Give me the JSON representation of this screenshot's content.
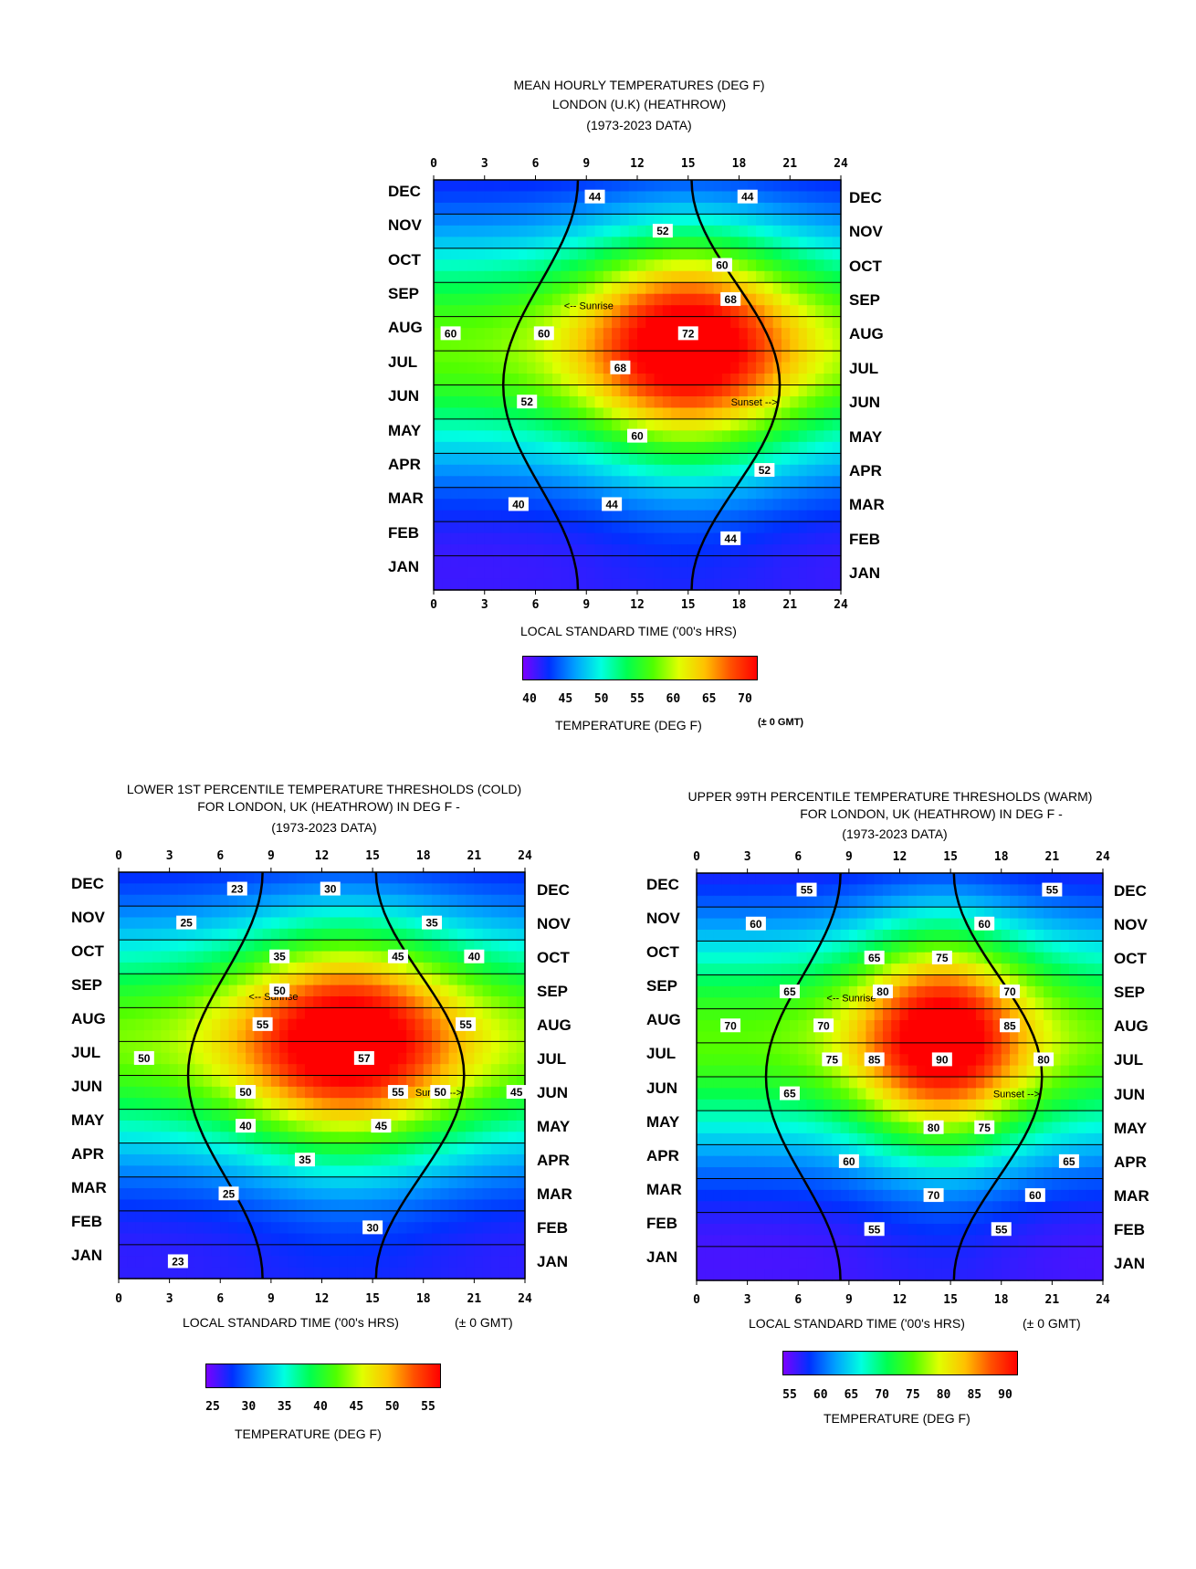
{
  "colorscale": [
    "#7a00ff",
    "#0030ff",
    "#00a0ff",
    "#00ffe0",
    "#00ff50",
    "#50ff00",
    "#e0ff00",
    "#ffc000",
    "#ff5000",
    "#ff0000"
  ],
  "charts": [
    {
      "id": "mean",
      "title_lines": [
        "MEAN HOURLY TEMPERATURES (DEG F)",
        "LONDON (U.K)  (HEATHROW)",
        "(1973-2023 DATA)"
      ],
      "xlabel": "LOCAL STANDARD TIME ('00's HRS)",
      "colorbar_label": "TEMPERATURE (DEG F)",
      "colorbar_ticks": [
        "40",
        "45",
        "50",
        "55",
        "60",
        "65",
        "70"
      ],
      "gmt_note": "(± 0 GMT)",
      "sunrise_label": "<-- Sunrise",
      "sunset_label": "Sunset -->"
    },
    {
      "id": "cold",
      "title_lines": [
        "LOWER 1ST PERCENTILE TEMPERATURE THRESHOLDS (COLD)",
        "FOR LONDON, UK (HEATHROW) IN DEG F -",
        "(1973-2023 DATA)"
      ],
      "xlabel": "LOCAL STANDARD TIME ('00's HRS)",
      "gmt_note": "(± 0 GMT)",
      "colorbar_label": "TEMPERATURE (DEG F)",
      "colorbar_ticks": [
        "25",
        "30",
        "35",
        "40",
        "45",
        "50",
        "55"
      ],
      "sunrise_label": "<-- Sunrise",
      "sunset_label": "Sunset -->"
    },
    {
      "id": "warm",
      "title_lines": [
        "UPPER 99TH PERCENTILE TEMPERATURE THRESHOLDS (WARM)",
        "FOR LONDON, UK (HEATHROW) IN DEG F -",
        "(1973-2023 DATA)"
      ],
      "xlabel": "LOCAL STANDARD TIME ('00's HRS)",
      "gmt_note": "(± 0 GMT)",
      "colorbar_label": "TEMPERATURE (DEG F)",
      "colorbar_ticks": [
        "55",
        "60",
        "65",
        "70",
        "75",
        "80",
        "85",
        "90"
      ],
      "sunrise_label": "<-- Sunrise",
      "sunset_label": "Sunset -->"
    }
  ],
  "months_top_down": [
    "DEC",
    "NOV",
    "OCT",
    "SEP",
    "AUG",
    "JUL",
    "JUN",
    "MAY",
    "APR",
    "MAR",
    "FEB",
    "JAN"
  ],
  "hour_ticks": [
    "0",
    "3",
    "6",
    "9",
    "12",
    "15",
    "18",
    "21",
    "24"
  ],
  "chart_data": [
    {
      "type": "heatmap",
      "title": "MEAN HOURLY TEMPERATURES (DEG F) LONDON (U.K) (HEATHROW) (1973-2023 DATA)",
      "xlabel": "LOCAL STANDARD TIME ('00's HRS)",
      "ylabel": "",
      "x_range": [
        0,
        24
      ],
      "months": [
        "JAN",
        "FEB",
        "MAR",
        "APR",
        "MAY",
        "JUN",
        "JUL",
        "AUG",
        "SEP",
        "OCT",
        "NOV",
        "DEC"
      ],
      "colorbar_range": [
        38,
        73
      ],
      "contour_labels": [
        {
          "value": 44,
          "month": "DEC",
          "hour": 9.5
        },
        {
          "value": 44,
          "month": "DEC",
          "hour": 18.5
        },
        {
          "value": 52,
          "month": "NOV",
          "hour": 13.5
        },
        {
          "value": 60,
          "month": "OCT",
          "hour": 17
        },
        {
          "value": 68,
          "month": "SEP",
          "hour": 17.5
        },
        {
          "value": 60,
          "month": "AUG",
          "hour": 1
        },
        {
          "value": 60,
          "month": "AUG",
          "hour": 6.5
        },
        {
          "value": 72,
          "month": "AUG",
          "hour": 15
        },
        {
          "value": 68,
          "month": "JUL",
          "hour": 11
        },
        {
          "value": 52,
          "month": "JUN",
          "hour": 5.5
        },
        {
          "value": 60,
          "month": "MAY",
          "hour": 12
        },
        {
          "value": 52,
          "month": "APR",
          "hour": 19.5
        },
        {
          "value": 40,
          "month": "MAR",
          "hour": 5
        },
        {
          "value": 44,
          "month": "MAR",
          "hour": 10.5
        },
        {
          "value": 44,
          "month": "FEB",
          "hour": 17.5
        }
      ]
    },
    {
      "type": "heatmap",
      "title": "LOWER 1ST PERCENTILE TEMPERATURE THRESHOLDS (COLD) FOR LONDON, UK (HEATHROW) IN DEG F - (1973-2023 DATA)",
      "xlabel": "LOCAL STANDARD TIME ('00's HRS)",
      "ylabel": "",
      "x_range": [
        0,
        24
      ],
      "months": [
        "JAN",
        "FEB",
        "MAR",
        "APR",
        "MAY",
        "JUN",
        "JUL",
        "AUG",
        "SEP",
        "OCT",
        "NOV",
        "DEC"
      ],
      "colorbar_range": [
        22,
        58
      ],
      "contour_labels": [
        {
          "value": 23,
          "month": "DEC",
          "hour": 7
        },
        {
          "value": 30,
          "month": "DEC",
          "hour": 12.5
        },
        {
          "value": 25,
          "month": "NOV",
          "hour": 4
        },
        {
          "value": 35,
          "month": "NOV",
          "hour": 18.5
        },
        {
          "value": 35,
          "month": "OCT",
          "hour": 9.5
        },
        {
          "value": 45,
          "month": "OCT",
          "hour": 16.5
        },
        {
          "value": 40,
          "month": "OCT",
          "hour": 21
        },
        {
          "value": 50,
          "month": "SEP",
          "hour": 9.5
        },
        {
          "value": 55,
          "month": "AUG",
          "hour": 8.5
        },
        {
          "value": 55,
          "month": "AUG",
          "hour": 20.5
        },
        {
          "value": 50,
          "month": "JUL",
          "hour": 1.5
        },
        {
          "value": 57,
          "month": "JUL",
          "hour": 14.5
        },
        {
          "value": 50,
          "month": "JUN",
          "hour": 7.5
        },
        {
          "value": 55,
          "month": "JUN",
          "hour": 16.5
        },
        {
          "value": 50,
          "month": "JUN",
          "hour": 19
        },
        {
          "value": 45,
          "month": "JUN",
          "hour": 23.5
        },
        {
          "value": 40,
          "month": "MAY",
          "hour": 7.5
        },
        {
          "value": 45,
          "month": "MAY",
          "hour": 15.5
        },
        {
          "value": 35,
          "month": "APR",
          "hour": 11
        },
        {
          "value": 25,
          "month": "MAR",
          "hour": 6.5
        },
        {
          "value": 30,
          "month": "FEB",
          "hour": 15
        },
        {
          "value": 23,
          "month": "JAN",
          "hour": 3.5
        }
      ]
    },
    {
      "type": "heatmap",
      "title": "UPPER 99TH PERCENTILE TEMPERATURE THRESHOLDS (WARM) FOR LONDON, UK (HEATHROW) IN DEG F - (1973-2023 DATA)",
      "xlabel": "LOCAL STANDARD TIME ('00's HRS)",
      "ylabel": "",
      "x_range": [
        0,
        24
      ],
      "months": [
        "JAN",
        "FEB",
        "MAR",
        "APR",
        "MAY",
        "JUN",
        "JUL",
        "AUG",
        "SEP",
        "OCT",
        "NOV",
        "DEC"
      ],
      "colorbar_range": [
        53,
        93
      ],
      "contour_labels": [
        {
          "value": 55,
          "month": "DEC",
          "hour": 6.5
        },
        {
          "value": 55,
          "month": "DEC",
          "hour": 21
        },
        {
          "value": 60,
          "month": "NOV",
          "hour": 3.5
        },
        {
          "value": 60,
          "month": "NOV",
          "hour": 17
        },
        {
          "value": 65,
          "month": "OCT",
          "hour": 10.5
        },
        {
          "value": 75,
          "month": "OCT",
          "hour": 14.5
        },
        {
          "value": 70,
          "month": "SEP",
          "hour": 18.5
        },
        {
          "value": 65,
          "month": "SEP",
          "hour": 5.5
        },
        {
          "value": 80,
          "month": "SEP",
          "hour": 11
        },
        {
          "value": 70,
          "month": "AUG",
          "hour": 7.5
        },
        {
          "value": 85,
          "month": "AUG",
          "hour": 18.5
        },
        {
          "value": 70,
          "month": "AUG",
          "hour": 2
        },
        {
          "value": 80,
          "month": "JUL",
          "hour": 20.5
        },
        {
          "value": 75,
          "month": "JUL",
          "hour": 8
        },
        {
          "value": 85,
          "month": "JUL",
          "hour": 10.5
        },
        {
          "value": 90,
          "month": "JUL",
          "hour": 14.5
        },
        {
          "value": 65,
          "month": "JUN",
          "hour": 5.5
        },
        {
          "value": 80,
          "month": "MAY",
          "hour": 14
        },
        {
          "value": 75,
          "month": "MAY",
          "hour": 17
        },
        {
          "value": 65,
          "month": "APR",
          "hour": 22
        },
        {
          "value": 60,
          "month": "APR",
          "hour": 9
        },
        {
          "value": 70,
          "month": "MAR",
          "hour": 14
        },
        {
          "value": 60,
          "month": "MAR",
          "hour": 20
        },
        {
          "value": 55,
          "month": "FEB",
          "hour": 10.5
        },
        {
          "value": 55,
          "month": "FEB",
          "hour": 18
        }
      ]
    }
  ]
}
